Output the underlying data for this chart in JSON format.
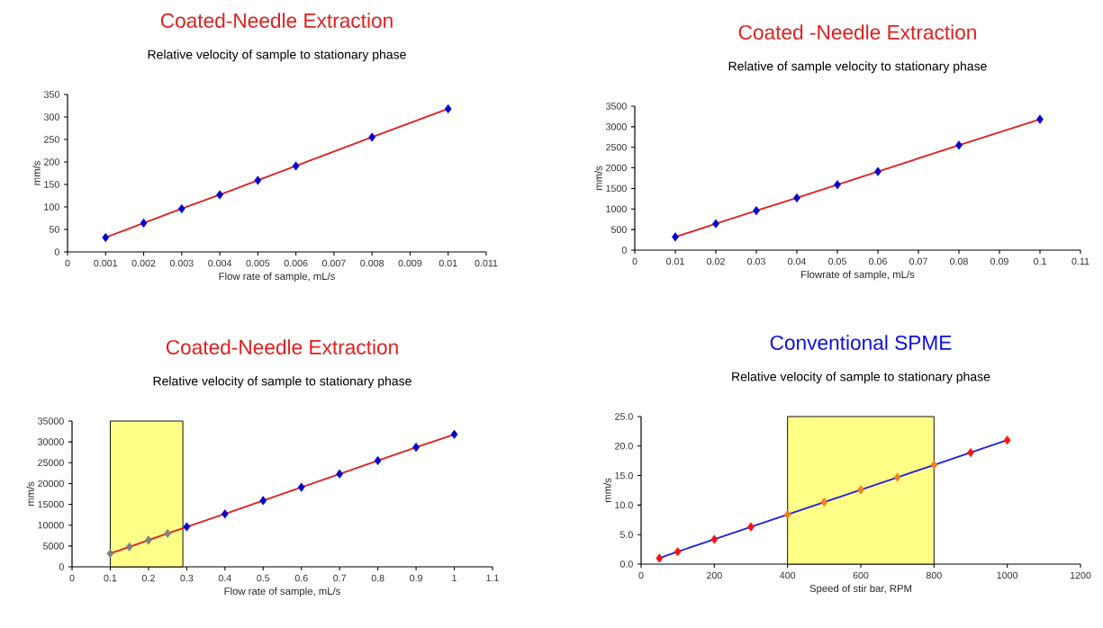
{
  "chart_data": [
    {
      "type": "line",
      "title": "Coated-Needle Extraction",
      "subtitle": "Relative velocity of sample to stationary phase",
      "xlabel": "Flow rate of sample, mL/s",
      "ylabel": "mm/s",
      "xlim": [
        0,
        0.011
      ],
      "xticks": [
        0,
        0.001,
        0.002,
        0.003,
        0.004,
        0.005,
        0.006,
        0.007,
        0.008,
        0.009,
        0.01,
        0.011
      ],
      "ylim": [
        0,
        350
      ],
      "yticks": [
        0,
        50,
        100,
        150,
        200,
        250,
        300,
        350
      ],
      "series": [
        {
          "color": "#e02020",
          "marker": "none",
          "x": [
            0.001,
            0.002,
            0.003,
            0.004,
            0.005,
            0.006,
            0.008,
            0.01
          ],
          "values": [
            32,
            64,
            96,
            127,
            159,
            191,
            255,
            318
          ]
        },
        {
          "type": "scatter",
          "color": "#0000cc",
          "marker": "diamond",
          "x": [
            0.001,
            0.002,
            0.003,
            0.004,
            0.005,
            0.006,
            0.008,
            0.01
          ],
          "values": [
            32,
            64,
            96,
            127,
            159,
            191,
            255,
            318
          ]
        }
      ]
    },
    {
      "type": "line",
      "title": "Coated -Needle Extraction",
      "subtitle": "Relative of sample velocity to stationary phase",
      "xlabel": "Flowrate of sample, mL/s",
      "ylabel": "mm/s",
      "xlim": [
        0,
        0.11
      ],
      "xticks": [
        0,
        0.01,
        0.02,
        0.03,
        0.04,
        0.05,
        0.06,
        0.07,
        0.08,
        0.09,
        0.1,
        0.11
      ],
      "ylim": [
        0,
        3500
      ],
      "yticks": [
        0,
        500,
        1000,
        1500,
        2000,
        2500,
        3000,
        3500
      ],
      "series": [
        {
          "color": "#e02020",
          "marker": "none",
          "x": [
            0.01,
            0.02,
            0.03,
            0.04,
            0.05,
            0.06,
            0.08,
            0.1
          ],
          "values": [
            320,
            640,
            960,
            1270,
            1590,
            1910,
            2550,
            3180
          ]
        },
        {
          "type": "scatter",
          "color": "#0000cc",
          "marker": "diamond",
          "x": [
            0.01,
            0.02,
            0.03,
            0.04,
            0.05,
            0.06,
            0.08,
            0.1
          ],
          "values": [
            320,
            640,
            960,
            1270,
            1590,
            1910,
            2550,
            3180
          ]
        }
      ]
    },
    {
      "type": "line",
      "title": "Coated-Needle Extraction",
      "subtitle": "Relative velocity of sample to stationary phase",
      "xlabel": "Flow rate of sample, mL/s",
      "ylabel": "mm/s",
      "xlim": [
        0,
        1.1
      ],
      "xticks": [
        0,
        0.1,
        0.2,
        0.3,
        0.4,
        0.5,
        0.6,
        0.7,
        0.8,
        0.9,
        1,
        1.1
      ],
      "ylim": [
        0,
        35000
      ],
      "yticks": [
        0,
        5000,
        10000,
        15000,
        20000,
        25000,
        30000,
        35000
      ],
      "bands": [
        {
          "axis": "x",
          "from": 0.1,
          "to": 0.29,
          "color": "#ffff88"
        }
      ],
      "series": [
        {
          "color": "#e02020",
          "marker": "none",
          "x": [
            0.1,
            0.15,
            0.2,
            0.25,
            0.3,
            0.4,
            0.5,
            0.6,
            0.7,
            0.8,
            0.9,
            1
          ],
          "values": [
            3200,
            4800,
            6400,
            8000,
            9600,
            12700,
            15900,
            19100,
            22300,
            25500,
            28700,
            31800
          ]
        },
        {
          "type": "scatter",
          "color": "#808080",
          "marker": "diamond",
          "x": [
            0.1,
            0.15,
            0.2,
            0.25
          ],
          "values": [
            3200,
            4800,
            6400,
            8000
          ]
        },
        {
          "type": "scatter",
          "color": "#0000cc",
          "marker": "diamond",
          "x": [
            0.3,
            0.4,
            0.5,
            0.6,
            0.7,
            0.8,
            0.9,
            1
          ],
          "values": [
            9600,
            12700,
            15900,
            19100,
            22300,
            25500,
            28700,
            31800
          ]
        }
      ]
    },
    {
      "type": "line",
      "title": "Conventional SPME",
      "subtitle": "Relative velocity of sample to stationary phase",
      "xlabel": "Speed of stir bar, RPM",
      "ylabel": "mm/s",
      "xlim": [
        0,
        1200
      ],
      "xticks": [
        0,
        200,
        400,
        600,
        800,
        1000,
        1200
      ],
      "ylim": [
        0,
        25
      ],
      "yticks": [
        {
          "value": 0,
          "label": "0.0"
        },
        {
          "value": 5,
          "label": "5.0"
        },
        {
          "value": 10,
          "label": "10.0"
        },
        {
          "value": 15,
          "label": "15.0"
        },
        {
          "value": 20,
          "label": "20.0"
        },
        {
          "value": 25,
          "label": "25.0"
        }
      ],
      "bands": [
        {
          "axis": "x",
          "from": 400,
          "to": 800,
          "color": "#ffff88"
        }
      ],
      "series": [
        {
          "color": "#2020e0",
          "marker": "none",
          "x": [
            50,
            100,
            200,
            300,
            400,
            500,
            600,
            700,
            800,
            900,
            1000
          ],
          "values": [
            1.0,
            2.1,
            4.2,
            6.3,
            8.4,
            10.5,
            12.6,
            14.7,
            16.8,
            18.9,
            21.0
          ]
        },
        {
          "type": "scatter",
          "color": "#ff1010",
          "marker": "diamond",
          "x": [
            50,
            100,
            200,
            300,
            900,
            1000
          ],
          "values": [
            1.0,
            2.1,
            4.2,
            6.3,
            18.9,
            21.0
          ]
        },
        {
          "type": "scatter",
          "color": "#f08020",
          "marker": "diamond",
          "x": [
            400,
            500,
            600,
            700,
            800
          ],
          "values": [
            8.4,
            10.5,
            12.6,
            14.7,
            16.8
          ]
        }
      ]
    }
  ]
}
